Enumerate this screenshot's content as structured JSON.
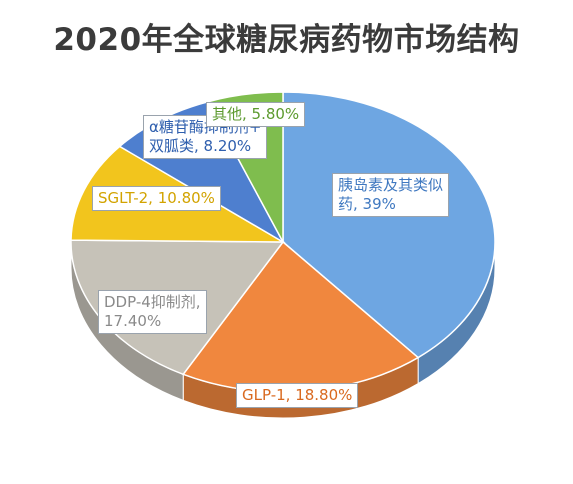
{
  "title": "2020年全球糖尿病药物市场结构",
  "chart_data": {
    "type": "pie",
    "title": "2020年全球糖尿病药物市场结构",
    "slices": [
      {
        "key": "insulin",
        "value": 39.0,
        "label_lines": [
          "胰岛素及其类似",
          "药, 39%"
        ],
        "color": "#6ea6e2",
        "text_color": "#3f78c0"
      },
      {
        "key": "glp1",
        "value": 18.8,
        "label_lines": [
          "GLP-1, 18.80%"
        ],
        "color": "#f0873e",
        "text_color": "#d9691f"
      },
      {
        "key": "dpp4",
        "value": 17.4,
        "label_lines": [
          "DDP-4抑制剂,",
          "17.40%"
        ],
        "color": "#c6c2b8",
        "text_color": "#8a8a8a"
      },
      {
        "key": "sglt2",
        "value": 10.8,
        "label_lines": [
          "SGLT-2, 10.80%"
        ],
        "color": "#f2c51d",
        "text_color": "#d2a300"
      },
      {
        "key": "alpha",
        "value": 8.2,
        "label_lines": [
          "α糖苷酶抑制剂+",
          "双胍类, 8.20%"
        ],
        "color": "#4e7fcf",
        "text_color": "#2f5fae"
      },
      {
        "key": "other",
        "value": 5.8,
        "label_lines": [
          "其他, 5.80%"
        ],
        "color": "#7fbd4e",
        "text_color": "#5c9a2e"
      }
    ]
  }
}
